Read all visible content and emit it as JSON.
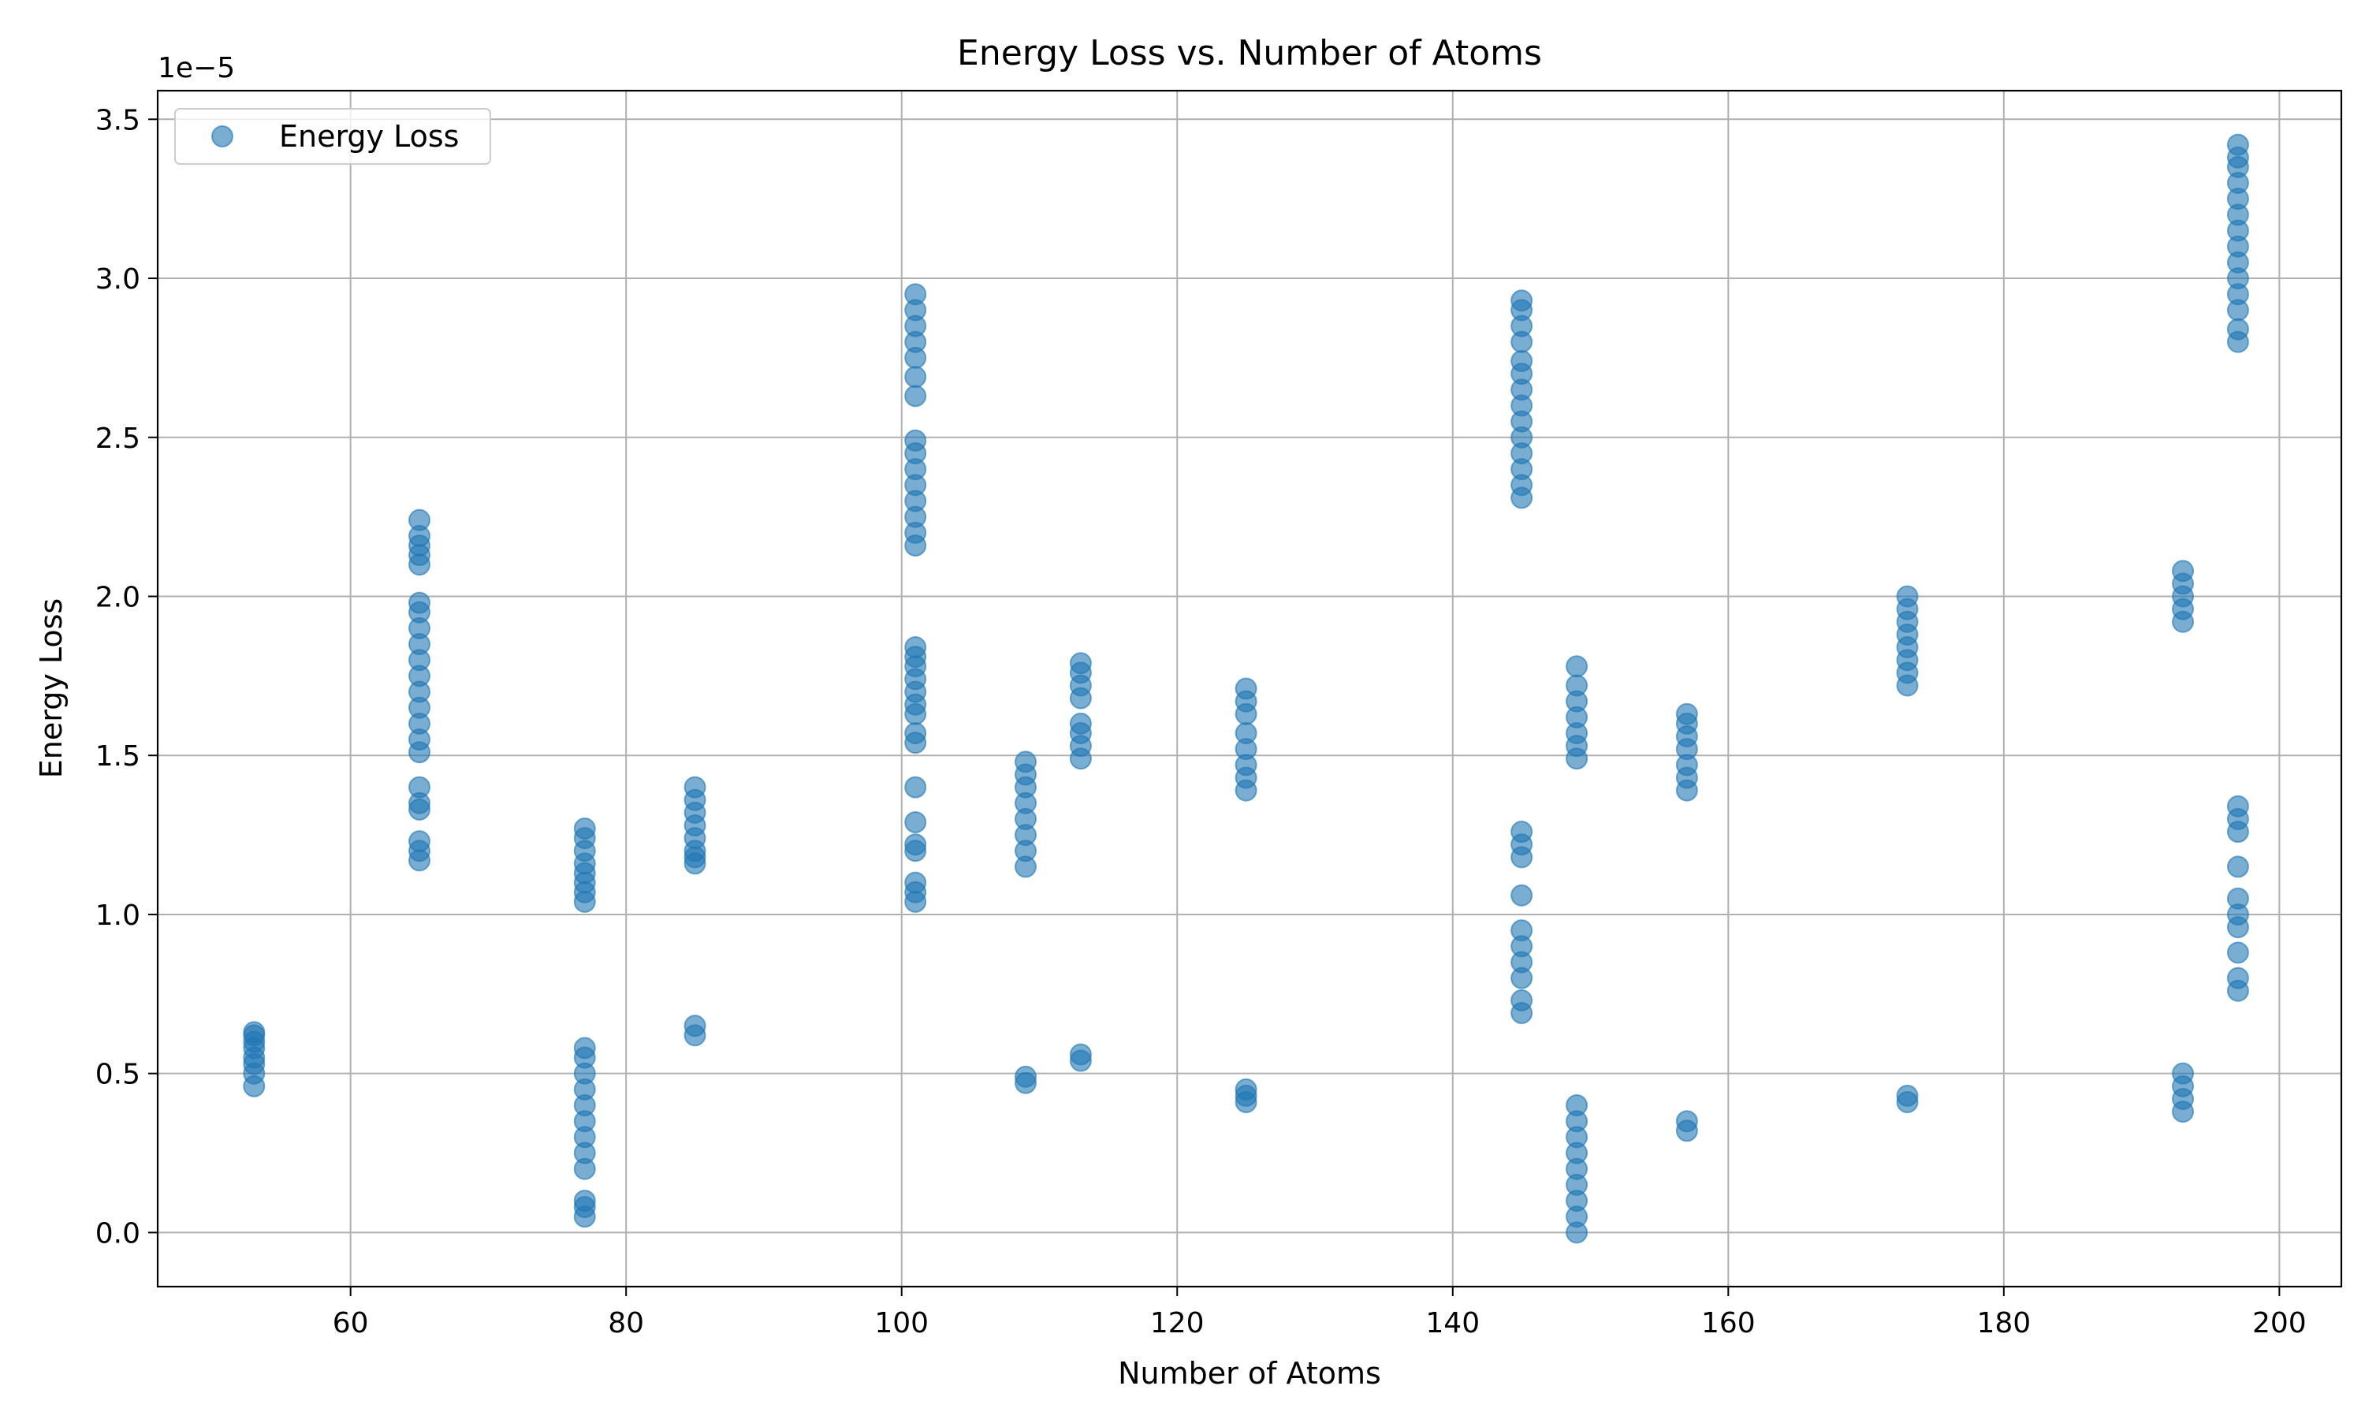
{
  "chart_data": {
    "type": "scatter",
    "title": "Energy Loss vs. Number of Atoms",
    "xlabel": "Number of Atoms",
    "ylabel": "Energy Loss",
    "y_offset_label": "1e−5",
    "xlim": [
      46,
      204.5
    ],
    "ylim": [
      -0.17,
      3.59
    ],
    "y_units": "1e-5",
    "xticks": [
      60,
      80,
      100,
      120,
      140,
      160,
      180,
      200
    ],
    "xtick_labels": [
      "60",
      "80",
      "100",
      "120",
      "140",
      "160",
      "180",
      "200"
    ],
    "yticks": [
      0.0,
      0.5,
      1.0,
      1.5,
      2.0,
      2.5,
      3.0,
      3.5
    ],
    "ytick_labels": [
      "0.0",
      "0.5",
      "1.0",
      "1.5",
      "2.0",
      "2.5",
      "3.0",
      "3.5"
    ],
    "grid": true,
    "legend": {
      "position": "top-left",
      "entries": [
        "Energy Loss"
      ]
    },
    "series": [
      {
        "name": "Energy Loss",
        "color": "#1f77b4",
        "alpha": 0.6,
        "points": [
          [
            53,
            0.46
          ],
          [
            53,
            0.5
          ],
          [
            53,
            0.53
          ],
          [
            53,
            0.55
          ],
          [
            53,
            0.58
          ],
          [
            53,
            0.6
          ],
          [
            53,
            0.62
          ],
          [
            53,
            0.63
          ],
          [
            65,
            1.17
          ],
          [
            65,
            1.2
          ],
          [
            65,
            1.23
          ],
          [
            65,
            1.33
          ],
          [
            65,
            1.35
          ],
          [
            65,
            1.4
          ],
          [
            65,
            1.51
          ],
          [
            65,
            1.55
          ],
          [
            65,
            1.6
          ],
          [
            65,
            1.65
          ],
          [
            65,
            1.7
          ],
          [
            65,
            1.75
          ],
          [
            65,
            1.8
          ],
          [
            65,
            1.85
          ],
          [
            65,
            1.9
          ],
          [
            65,
            1.95
          ],
          [
            65,
            1.98
          ],
          [
            65,
            2.1
          ],
          [
            65,
            2.13
          ],
          [
            65,
            2.16
          ],
          [
            65,
            2.19
          ],
          [
            65,
            2.24
          ],
          [
            77,
            0.05
          ],
          [
            77,
            0.08
          ],
          [
            77,
            0.1
          ],
          [
            77,
            0.2
          ],
          [
            77,
            0.25
          ],
          [
            77,
            0.3
          ],
          [
            77,
            0.35
          ],
          [
            77,
            0.4
          ],
          [
            77,
            0.45
          ],
          [
            77,
            0.5
          ],
          [
            77,
            0.55
          ],
          [
            77,
            0.58
          ],
          [
            77,
            1.04
          ],
          [
            77,
            1.07
          ],
          [
            77,
            1.1
          ],
          [
            77,
            1.13
          ],
          [
            77,
            1.16
          ],
          [
            77,
            1.2
          ],
          [
            77,
            1.24
          ],
          [
            77,
            1.27
          ],
          [
            85,
            0.62
          ],
          [
            85,
            0.65
          ],
          [
            85,
            1.16
          ],
          [
            85,
            1.18
          ],
          [
            85,
            1.2
          ],
          [
            85,
            1.24
          ],
          [
            85,
            1.28
          ],
          [
            85,
            1.32
          ],
          [
            85,
            1.36
          ],
          [
            85,
            1.4
          ],
          [
            101,
            1.04
          ],
          [
            101,
            1.07
          ],
          [
            101,
            1.1
          ],
          [
            101,
            1.2
          ],
          [
            101,
            1.22
          ],
          [
            101,
            1.29
          ],
          [
            101,
            1.4
          ],
          [
            101,
            1.54
          ],
          [
            101,
            1.57
          ],
          [
            101,
            1.63
          ],
          [
            101,
            1.66
          ],
          [
            101,
            1.7
          ],
          [
            101,
            1.74
          ],
          [
            101,
            1.78
          ],
          [
            101,
            1.81
          ],
          [
            101,
            1.84
          ],
          [
            101,
            2.16
          ],
          [
            101,
            2.2
          ],
          [
            101,
            2.25
          ],
          [
            101,
            2.3
          ],
          [
            101,
            2.35
          ],
          [
            101,
            2.4
          ],
          [
            101,
            2.45
          ],
          [
            101,
            2.49
          ],
          [
            101,
            2.63
          ],
          [
            101,
            2.69
          ],
          [
            101,
            2.75
          ],
          [
            101,
            2.8
          ],
          [
            101,
            2.85
          ],
          [
            101,
            2.9
          ],
          [
            101,
            2.95
          ],
          [
            109,
            0.47
          ],
          [
            109,
            0.49
          ],
          [
            109,
            1.15
          ],
          [
            109,
            1.2
          ],
          [
            109,
            1.25
          ],
          [
            109,
            1.3
          ],
          [
            109,
            1.35
          ],
          [
            109,
            1.4
          ],
          [
            109,
            1.44
          ],
          [
            109,
            1.48
          ],
          [
            113,
            0.54
          ],
          [
            113,
            0.56
          ],
          [
            113,
            1.49
          ],
          [
            113,
            1.53
          ],
          [
            113,
            1.57
          ],
          [
            113,
            1.6
          ],
          [
            113,
            1.68
          ],
          [
            113,
            1.72
          ],
          [
            113,
            1.76
          ],
          [
            113,
            1.79
          ],
          [
            125,
            0.41
          ],
          [
            125,
            0.43
          ],
          [
            125,
            0.45
          ],
          [
            125,
            1.39
          ],
          [
            125,
            1.43
          ],
          [
            125,
            1.47
          ],
          [
            125,
            1.52
          ],
          [
            125,
            1.57
          ],
          [
            125,
            1.63
          ],
          [
            125,
            1.67
          ],
          [
            125,
            1.71
          ],
          [
            145,
            0.69
          ],
          [
            145,
            0.73
          ],
          [
            145,
            0.8
          ],
          [
            145,
            0.85
          ],
          [
            145,
            0.9
          ],
          [
            145,
            0.95
          ],
          [
            145,
            1.06
          ],
          [
            145,
            1.18
          ],
          [
            145,
            1.22
          ],
          [
            145,
            1.26
          ],
          [
            145,
            2.31
          ],
          [
            145,
            2.35
          ],
          [
            145,
            2.4
          ],
          [
            145,
            2.45
          ],
          [
            145,
            2.5
          ],
          [
            145,
            2.55
          ],
          [
            145,
            2.6
          ],
          [
            145,
            2.65
          ],
          [
            145,
            2.7
          ],
          [
            145,
            2.74
          ],
          [
            145,
            2.8
          ],
          [
            145,
            2.85
          ],
          [
            145,
            2.9
          ],
          [
            145,
            2.93
          ],
          [
            149,
            0.0
          ],
          [
            149,
            0.05
          ],
          [
            149,
            0.1
          ],
          [
            149,
            0.15
          ],
          [
            149,
            0.2
          ],
          [
            149,
            0.25
          ],
          [
            149,
            0.3
          ],
          [
            149,
            0.35
          ],
          [
            149,
            0.4
          ],
          [
            149,
            1.49
          ],
          [
            149,
            1.53
          ],
          [
            149,
            1.57
          ],
          [
            149,
            1.62
          ],
          [
            149,
            1.67
          ],
          [
            149,
            1.72
          ],
          [
            149,
            1.78
          ],
          [
            157,
            0.32
          ],
          [
            157,
            0.35
          ],
          [
            157,
            1.39
          ],
          [
            157,
            1.43
          ],
          [
            157,
            1.47
          ],
          [
            157,
            1.52
          ],
          [
            157,
            1.56
          ],
          [
            157,
            1.6
          ],
          [
            157,
            1.63
          ],
          [
            173,
            0.41
          ],
          [
            173,
            0.43
          ],
          [
            173,
            1.72
          ],
          [
            173,
            1.76
          ],
          [
            173,
            1.8
          ],
          [
            173,
            1.84
          ],
          [
            173,
            1.88
          ],
          [
            173,
            1.92
          ],
          [
            173,
            1.96
          ],
          [
            173,
            2.0
          ],
          [
            193,
            0.38
          ],
          [
            193,
            0.42
          ],
          [
            193,
            0.46
          ],
          [
            193,
            0.5
          ],
          [
            193,
            1.92
          ],
          [
            193,
            1.96
          ],
          [
            193,
            2.0
          ],
          [
            193,
            2.04
          ],
          [
            193,
            2.08
          ],
          [
            197,
            0.76
          ],
          [
            197,
            0.8
          ],
          [
            197,
            0.88
          ],
          [
            197,
            0.96
          ],
          [
            197,
            1.0
          ],
          [
            197,
            1.05
          ],
          [
            197,
            1.15
          ],
          [
            197,
            1.26
          ],
          [
            197,
            1.3
          ],
          [
            197,
            1.34
          ],
          [
            197,
            2.8
          ],
          [
            197,
            2.84
          ],
          [
            197,
            2.9
          ],
          [
            197,
            2.95
          ],
          [
            197,
            3.0
          ],
          [
            197,
            3.05
          ],
          [
            197,
            3.1
          ],
          [
            197,
            3.15
          ],
          [
            197,
            3.2
          ],
          [
            197,
            3.25
          ],
          [
            197,
            3.3
          ],
          [
            197,
            3.35
          ],
          [
            197,
            3.38
          ],
          [
            197,
            3.42
          ]
        ]
      }
    ]
  }
}
